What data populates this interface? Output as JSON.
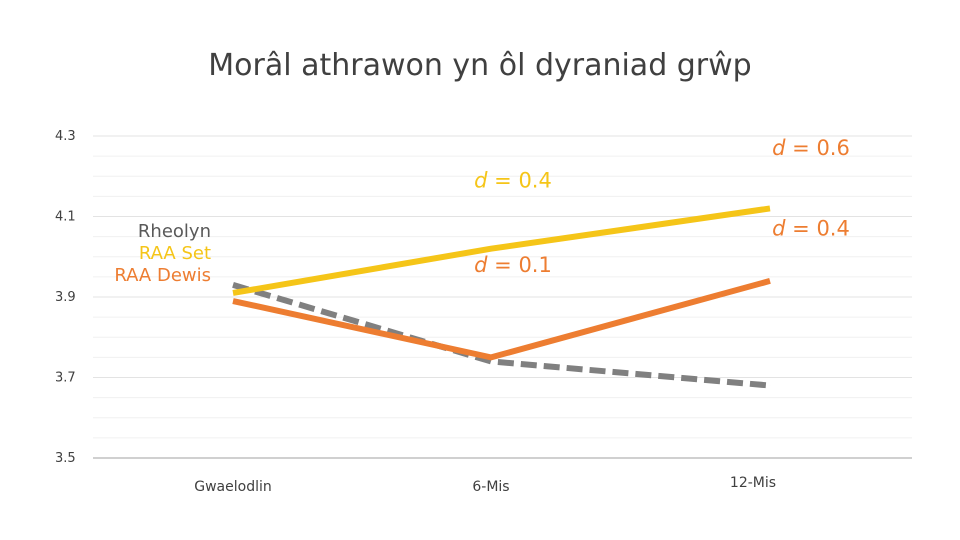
{
  "chart_data": {
    "type": "line",
    "title": "Morâl athrawon yn ôl dyraniad grŵp",
    "xlabel": "",
    "ylabel": "",
    "categories": [
      "Gwaelodlin",
      "6-Mis",
      "12-Mis"
    ],
    "ylim": [
      3.5,
      4.3
    ],
    "yticks": [
      "3.5",
      "3.7",
      "3.9",
      "4.1",
      "4.3"
    ],
    "grid": true,
    "legend_position": "left",
    "series": [
      {
        "name": "Rheolyn",
        "values": [
          3.93,
          3.74,
          3.68
        ],
        "color": "#808080",
        "dash": true
      },
      {
        "name": "RAA Set",
        "values": [
          3.91,
          4.02,
          4.12
        ],
        "color": "#f5c518",
        "dash": false
      },
      {
        "name": "RAA Dewis",
        "values": [
          3.89,
          3.75,
          3.94
        ],
        "color": "#ed7d31",
        "dash": false
      }
    ],
    "annotations": [
      {
        "prefix": "d",
        "text": " = 0.4",
        "category": 1,
        "y": 4.19,
        "color": "#f5c518"
      },
      {
        "prefix": "d",
        "text": " = 0.6",
        "category": 2,
        "y": 4.27,
        "color": "#ed7d31"
      },
      {
        "prefix": "d",
        "text": " = 0.1",
        "category": 1,
        "y": 3.98,
        "color": "#ed7d31"
      },
      {
        "prefix": "d",
        "text": " = 0.4",
        "category": 2,
        "y": 4.07,
        "color": "#ed7d31"
      }
    ]
  }
}
